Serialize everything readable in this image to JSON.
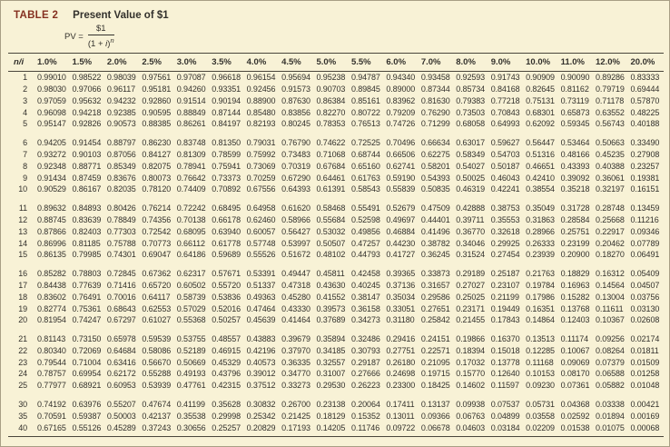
{
  "colors": {
    "panel_bg": "#f8f2d6",
    "panel_border": "#a89f85",
    "label_accent": "#853020",
    "rule": "#4a463c",
    "text": "#33312c"
  },
  "table": {
    "label": "TABLE 2",
    "title": "Present Value of $1",
    "formula": {
      "lhs": "PV =",
      "numerator": "$1",
      "den_open": "(1 + ",
      "den_var": "i",
      "den_close": ")",
      "exponent": "n"
    },
    "corner_header": "n/i",
    "rate_headers": [
      "1.0%",
      "1.5%",
      "2.0%",
      "2.5%",
      "3.0%",
      "3.5%",
      "4.0%",
      "4.5%",
      "5.0%",
      "5.5%",
      "6.0%",
      "7.0%",
      "8.0%",
      "9.0%",
      "10.0%",
      "11.0%",
      "12.0%",
      "20.0%"
    ],
    "row_groups": [
      {
        "rows": [
          {
            "n": "1",
            "values": [
              "0.99010",
              "0.98522",
              "0.98039",
              "0.97561",
              "0.97087",
              "0.96618",
              "0.96154",
              "0.95694",
              "0.95238",
              "0.94787",
              "0.94340",
              "0.93458",
              "0.92593",
              "0.91743",
              "0.90909",
              "0.90090",
              "0.89286",
              "0.83333"
            ]
          },
          {
            "n": "2",
            "values": [
              "0.98030",
              "0.97066",
              "0.96117",
              "0.95181",
              "0.94260",
              "0.93351",
              "0.92456",
              "0.91573",
              "0.90703",
              "0.89845",
              "0.89000",
              "0.87344",
              "0.85734",
              "0.84168",
              "0.82645",
              "0.81162",
              "0.79719",
              "0.69444"
            ]
          },
          {
            "n": "3",
            "values": [
              "0.97059",
              "0.95632",
              "0.94232",
              "0.92860",
              "0.91514",
              "0.90194",
              "0.88900",
              "0.87630",
              "0.86384",
              "0.85161",
              "0.83962",
              "0.81630",
              "0.79383",
              "0.77218",
              "0.75131",
              "0.73119",
              "0.71178",
              "0.57870"
            ]
          },
          {
            "n": "4",
            "values": [
              "0.96098",
              "0.94218",
              "0.92385",
              "0.90595",
              "0.88849",
              "0.87144",
              "0.85480",
              "0.83856",
              "0.82270",
              "0.80722",
              "0.79209",
              "0.76290",
              "0.73503",
              "0.70843",
              "0.68301",
              "0.65873",
              "0.63552",
              "0.48225"
            ]
          },
          {
            "n": "5",
            "values": [
              "0.95147",
              "0.92826",
              "0.90573",
              "0.88385",
              "0.86261",
              "0.84197",
              "0.82193",
              "0.80245",
              "0.78353",
              "0.76513",
              "0.74726",
              "0.71299",
              "0.68058",
              "0.64993",
              "0.62092",
              "0.59345",
              "0.56743",
              "0.40188"
            ]
          }
        ]
      },
      {
        "rows": [
          {
            "n": "6",
            "values": [
              "0.94205",
              "0.91454",
              "0.88797",
              "0.86230",
              "0.83748",
              "0.81350",
              "0.79031",
              "0.76790",
              "0.74622",
              "0.72525",
              "0.70496",
              "0.66634",
              "0.63017",
              "0.59627",
              "0.56447",
              "0.53464",
              "0.50663",
              "0.33490"
            ]
          },
          {
            "n": "7",
            "values": [
              "0.93272",
              "0.90103",
              "0.87056",
              "0.84127",
              "0.81309",
              "0.78599",
              "0.75992",
              "0.73483",
              "0.71068",
              "0.68744",
              "0.66506",
              "0.62275",
              "0.58349",
              "0.54703",
              "0.51316",
              "0.48166",
              "0.45235",
              "0.27908"
            ]
          },
          {
            "n": "8",
            "values": [
              "0.92348",
              "0.88771",
              "0.85349",
              "0.82075",
              "0.78941",
              "0.75941",
              "0.73069",
              "0.70319",
              "0.67684",
              "0.65160",
              "0.62741",
              "0.58201",
              "0.54027",
              "0.50187",
              "0.46651",
              "0.43393",
              "0.40388",
              "0.23257"
            ]
          },
          {
            "n": "9",
            "values": [
              "0.91434",
              "0.87459",
              "0.83676",
              "0.80073",
              "0.76642",
              "0.73373",
              "0.70259",
              "0.67290",
              "0.64461",
              "0.61763",
              "0.59190",
              "0.54393",
              "0.50025",
              "0.46043",
              "0.42410",
              "0.39092",
              "0.36061",
              "0.19381"
            ]
          },
          {
            "n": "10",
            "values": [
              "0.90529",
              "0.86167",
              "0.82035",
              "0.78120",
              "0.74409",
              "0.70892",
              "0.67556",
              "0.64393",
              "0.61391",
              "0.58543",
              "0.55839",
              "0.50835",
              "0.46319",
              "0.42241",
              "0.38554",
              "0.35218",
              "0.32197",
              "0.16151"
            ]
          }
        ]
      },
      {
        "rows": [
          {
            "n": "11",
            "values": [
              "0.89632",
              "0.84893",
              "0.80426",
              "0.76214",
              "0.72242",
              "0.68495",
              "0.64958",
              "0.61620",
              "0.58468",
              "0.55491",
              "0.52679",
              "0.47509",
              "0.42888",
              "0.38753",
              "0.35049",
              "0.31728",
              "0.28748",
              "0.13459"
            ]
          },
          {
            "n": "12",
            "values": [
              "0.88745",
              "0.83639",
              "0.78849",
              "0.74356",
              "0.70138",
              "0.66178",
              "0.62460",
              "0.58966",
              "0.55684",
              "0.52598",
              "0.49697",
              "0.44401",
              "0.39711",
              "0.35553",
              "0.31863",
              "0.28584",
              "0.25668",
              "0.11216"
            ]
          },
          {
            "n": "13",
            "values": [
              "0.87866",
              "0.82403",
              "0.77303",
              "0.72542",
              "0.68095",
              "0.63940",
              "0.60057",
              "0.56427",
              "0.53032",
              "0.49856",
              "0.46884",
              "0.41496",
              "0.36770",
              "0.32618",
              "0.28966",
              "0.25751",
              "0.22917",
              "0.09346"
            ]
          },
          {
            "n": "14",
            "values": [
              "0.86996",
              "0.81185",
              "0.75788",
              "0.70773",
              "0.66112",
              "0.61778",
              "0.57748",
              "0.53997",
              "0.50507",
              "0.47257",
              "0.44230",
              "0.38782",
              "0.34046",
              "0.29925",
              "0.26333",
              "0.23199",
              "0.20462",
              "0.07789"
            ]
          },
          {
            "n": "15",
            "values": [
              "0.86135",
              "0.79985",
              "0.74301",
              "0.69047",
              "0.64186",
              "0.59689",
              "0.55526",
              "0.51672",
              "0.48102",
              "0.44793",
              "0.41727",
              "0.36245",
              "0.31524",
              "0.27454",
              "0.23939",
              "0.20900",
              "0.18270",
              "0.06491"
            ]
          }
        ]
      },
      {
        "rows": [
          {
            "n": "16",
            "values": [
              "0.85282",
              "0.78803",
              "0.72845",
              "0.67362",
              "0.62317",
              "0.57671",
              "0.53391",
              "0.49447",
              "0.45811",
              "0.42458",
              "0.39365",
              "0.33873",
              "0.29189",
              "0.25187",
              "0.21763",
              "0.18829",
              "0.16312",
              "0.05409"
            ]
          },
          {
            "n": "17",
            "values": [
              "0.84438",
              "0.77639",
              "0.71416",
              "0.65720",
              "0.60502",
              "0.55720",
              "0.51337",
              "0.47318",
              "0.43630",
              "0.40245",
              "0.37136",
              "0.31657",
              "0.27027",
              "0.23107",
              "0.19784",
              "0.16963",
              "0.14564",
              "0.04507"
            ]
          },
          {
            "n": "18",
            "values": [
              "0.83602",
              "0.76491",
              "0.70016",
              "0.64117",
              "0.58739",
              "0.53836",
              "0.49363",
              "0.45280",
              "0.41552",
              "0.38147",
              "0.35034",
              "0.29586",
              "0.25025",
              "0.21199",
              "0.17986",
              "0.15282",
              "0.13004",
              "0.03756"
            ]
          },
          {
            "n": "19",
            "values": [
              "0.82774",
              "0.75361",
              "0.68643",
              "0.62553",
              "0.57029",
              "0.52016",
              "0.47464",
              "0.43330",
              "0.39573",
              "0.36158",
              "0.33051",
              "0.27651",
              "0.23171",
              "0.19449",
              "0.16351",
              "0.13768",
              "0.11611",
              "0.03130"
            ]
          },
          {
            "n": "20",
            "values": [
              "0.81954",
              "0.74247",
              "0.67297",
              "0.61027",
              "0.55368",
              "0.50257",
              "0.45639",
              "0.41464",
              "0.37689",
              "0.34273",
              "0.31180",
              "0.25842",
              "0.21455",
              "0.17843",
              "0.14864",
              "0.12403",
              "0.10367",
              "0.02608"
            ]
          }
        ]
      },
      {
        "rows": [
          {
            "n": "21",
            "values": [
              "0.81143",
              "0.73150",
              "0.65978",
              "0.59539",
              "0.53755",
              "0.48557",
              "0.43883",
              "0.39679",
              "0.35894",
              "0.32486",
              "0.29416",
              "0.24151",
              "0.19866",
              "0.16370",
              "0.13513",
              "0.11174",
              "0.09256",
              "0.02174"
            ]
          },
          {
            "n": "22",
            "values": [
              "0.80340",
              "0.72069",
              "0.64684",
              "0.58086",
              "0.52189",
              "0.46915",
              "0.42196",
              "0.37970",
              "0.34185",
              "0.30793",
              "0.27751",
              "0.22571",
              "0.18394",
              "0.15018",
              "0.12285",
              "0.10067",
              "0.08264",
              "0.01811"
            ]
          },
          {
            "n": "23",
            "values": [
              "0.79544",
              "0.71004",
              "0.63416",
              "0.56670",
              "0.50669",
              "0.45329",
              "0.40573",
              "0.36335",
              "0.32557",
              "0.29187",
              "0.26180",
              "0.21095",
              "0.17032",
              "0.13778",
              "0.11168",
              "0.09069",
              "0.07379",
              "0.01509"
            ]
          },
          {
            "n": "24",
            "values": [
              "0.78757",
              "0.69954",
              "0.62172",
              "0.55288",
              "0.49193",
              "0.43796",
              "0.39012",
              "0.34770",
              "0.31007",
              "0.27666",
              "0.24698",
              "0.19715",
              "0.15770",
              "0.12640",
              "0.10153",
              "0.08170",
              "0.06588",
              "0.01258"
            ]
          },
          {
            "n": "25",
            "values": [
              "0.77977",
              "0.68921",
              "0.60953",
              "0.53939",
              "0.47761",
              "0.42315",
              "0.37512",
              "0.33273",
              "0.29530",
              "0.26223",
              "0.23300",
              "0.18425",
              "0.14602",
              "0.11597",
              "0.09230",
              "0.07361",
              "0.05882",
              "0.01048"
            ]
          }
        ]
      },
      {
        "rows": [
          {
            "n": "30",
            "values": [
              "0.74192",
              "0.63976",
              "0.55207",
              "0.47674",
              "0.41199",
              "0.35628",
              "0.30832",
              "0.26700",
              "0.23138",
              "0.20064",
              "0.17411",
              "0.13137",
              "0.09938",
              "0.07537",
              "0.05731",
              "0.04368",
              "0.03338",
              "0.00421"
            ]
          },
          {
            "n": "35",
            "values": [
              "0.70591",
              "0.59387",
              "0.50003",
              "0.42137",
              "0.35538",
              "0.29998",
              "0.25342",
              "0.21425",
              "0.18129",
              "0.15352",
              "0.13011",
              "0.09366",
              "0.06763",
              "0.04899",
              "0.03558",
              "0.02592",
              "0.01894",
              "0.00169"
            ]
          },
          {
            "n": "40",
            "values": [
              "0.67165",
              "0.55126",
              "0.45289",
              "0.37243",
              "0.30656",
              "0.25257",
              "0.20829",
              "0.17193",
              "0.14205",
              "0.11746",
              "0.09722",
              "0.06678",
              "0.04603",
              "0.03184",
              "0.02209",
              "0.01538",
              "0.01075",
              "0.00068"
            ]
          }
        ]
      }
    ]
  }
}
